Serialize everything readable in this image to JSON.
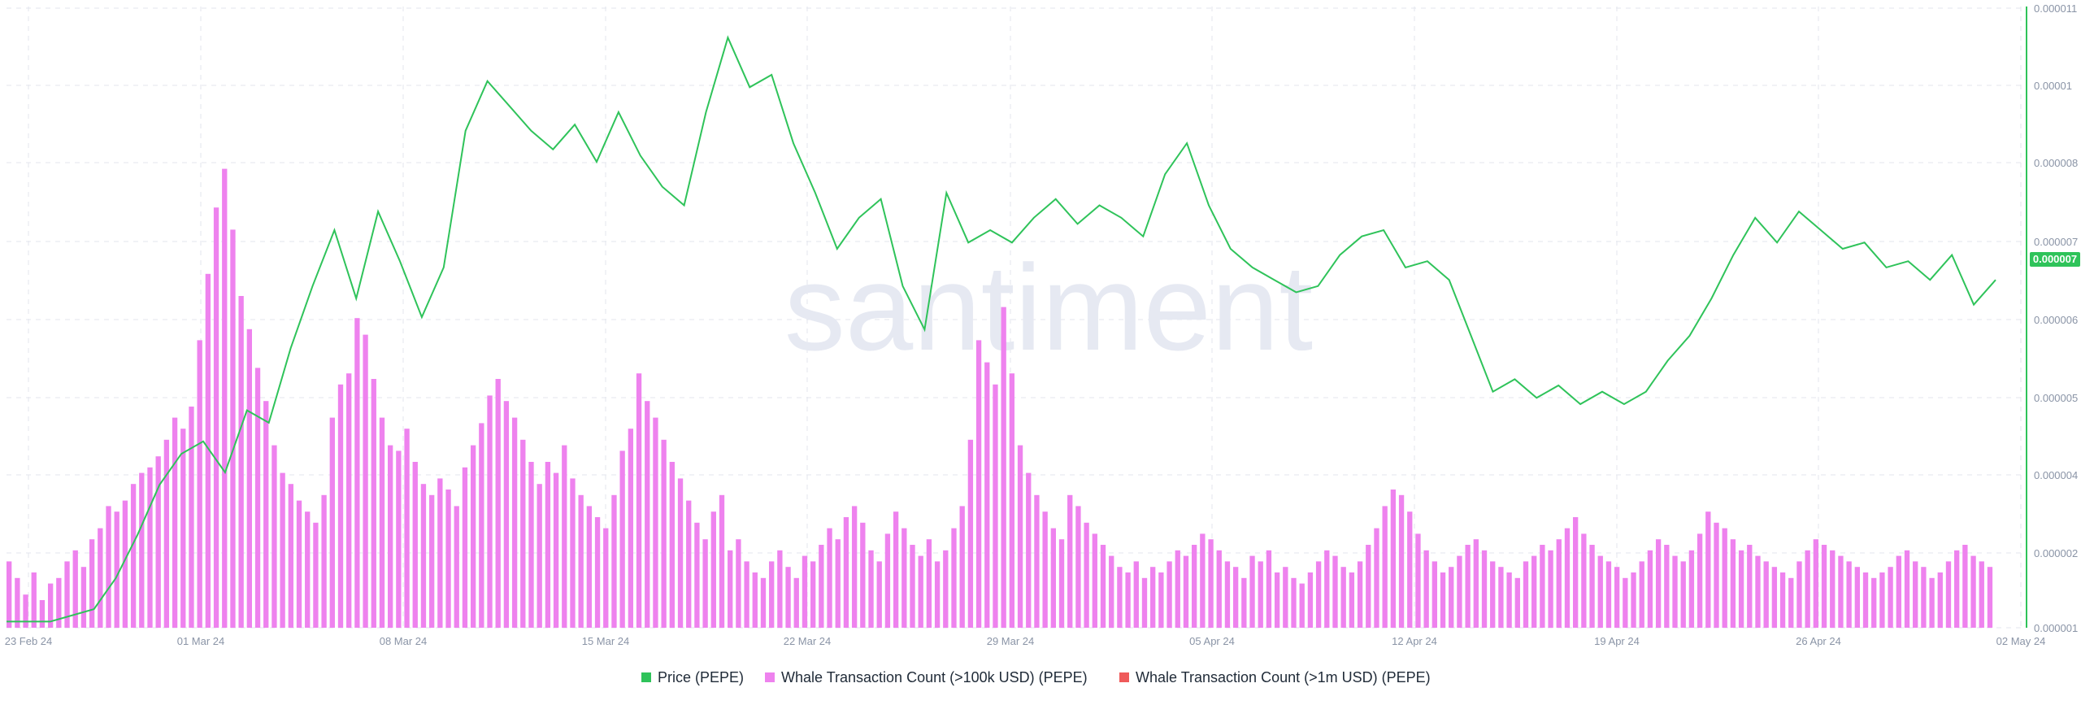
{
  "watermark": "santiment",
  "colors": {
    "price": "#2fc35a",
    "whale_100k": "#ee82ee",
    "whale_1m": "#ef5a5a",
    "grid": "#e3e6ee",
    "axis_text": "#8a94a6"
  },
  "chart_data": {
    "type": "bar",
    "x_start": "23 Feb 24",
    "x_end": "02 May 24",
    "x_ticks": [
      "23 Feb 24",
      "01 Mar 24",
      "08 Mar 24",
      "15 Mar 24",
      "22 Mar 24",
      "29 Mar 24",
      "05 Apr 24",
      "12 Apr 24",
      "19 Apr 24",
      "26 Apr 24",
      "02 May 24"
    ],
    "y_right_ticks": [
      "0.000011",
      "0.00001",
      "0.000008",
      "0.000007",
      "0.000006",
      "0.000005",
      "0.000004",
      "0.000002",
      "0.000001"
    ],
    "y_right_range": [
      1e-06,
      1.1e-05
    ],
    "current_price_label": "0.000007",
    "grid": true,
    "legend_placement": "bottom-center",
    "series": [
      {
        "name": "Price (PEPE)",
        "type": "line",
        "points": [
          [
            0,
            1.1e-06
          ],
          [
            2,
            1.1e-06
          ],
          [
            4,
            1.3e-06
          ],
          [
            5,
            1.8e-06
          ],
          [
            6,
            2.5e-06
          ],
          [
            7,
            3.3e-06
          ],
          [
            8,
            3.8e-06
          ],
          [
            9,
            4e-06
          ],
          [
            10,
            3.5e-06
          ],
          [
            11,
            4.5e-06
          ],
          [
            12,
            4.3e-06
          ],
          [
            13,
            5.5e-06
          ],
          [
            14,
            6.5e-06
          ],
          [
            15,
            7.4e-06
          ],
          [
            16,
            6.3e-06
          ],
          [
            17,
            7.7e-06
          ],
          [
            18,
            6.9e-06
          ],
          [
            19,
            6e-06
          ],
          [
            20,
            6.8e-06
          ],
          [
            21,
            9e-06
          ],
          [
            22,
            9.8e-06
          ],
          [
            23,
            9.4e-06
          ],
          [
            24,
            9e-06
          ],
          [
            25,
            8.7e-06
          ],
          [
            26,
            9.1e-06
          ],
          [
            27,
            8.5e-06
          ],
          [
            28,
            9.3e-06
          ],
          [
            29,
            8.6e-06
          ],
          [
            30,
            8.1e-06
          ],
          [
            31,
            7.8e-06
          ],
          [
            32,
            9.3e-06
          ],
          [
            33,
            1.05e-05
          ],
          [
            34,
            9.7e-06
          ],
          [
            35,
            9.9e-06
          ],
          [
            36,
            8.8e-06
          ],
          [
            37,
            8e-06
          ],
          [
            38,
            7.1e-06
          ],
          [
            39,
            7.6e-06
          ],
          [
            40,
            7.9e-06
          ],
          [
            41,
            6.5e-06
          ],
          [
            42,
            5.8e-06
          ],
          [
            43,
            8e-06
          ],
          [
            44,
            7.2e-06
          ],
          [
            45,
            7.4e-06
          ],
          [
            46,
            7.2e-06
          ],
          [
            47,
            7.6e-06
          ],
          [
            48,
            7.9e-06
          ],
          [
            49,
            7.5e-06
          ],
          [
            50,
            7.8e-06
          ],
          [
            51,
            7.6e-06
          ],
          [
            52,
            7.3e-06
          ],
          [
            53,
            8.3e-06
          ],
          [
            54,
            8.8e-06
          ],
          [
            55,
            7.8e-06
          ],
          [
            56,
            7.1e-06
          ],
          [
            57,
            6.8e-06
          ],
          [
            58,
            6.6e-06
          ],
          [
            59,
            6.4e-06
          ],
          [
            60,
            6.5e-06
          ],
          [
            61,
            7e-06
          ],
          [
            62,
            7.3e-06
          ],
          [
            63,
            7.4e-06
          ],
          [
            64,
            6.8e-06
          ],
          [
            65,
            6.9e-06
          ],
          [
            66,
            6.6e-06
          ],
          [
            67,
            5.7e-06
          ],
          [
            68,
            4.8e-06
          ],
          [
            69,
            5e-06
          ],
          [
            70,
            4.7e-06
          ],
          [
            71,
            4.9e-06
          ],
          [
            72,
            4.6e-06
          ],
          [
            73,
            4.8e-06
          ],
          [
            74,
            4.6e-06
          ],
          [
            75,
            4.8e-06
          ],
          [
            76,
            5.3e-06
          ],
          [
            77,
            5.7e-06
          ],
          [
            78,
            6.3e-06
          ],
          [
            79,
            7e-06
          ],
          [
            80,
            7.6e-06
          ],
          [
            81,
            7.2e-06
          ],
          [
            82,
            7.7e-06
          ],
          [
            83,
            7.4e-06
          ],
          [
            84,
            7.1e-06
          ],
          [
            85,
            7.2e-06
          ],
          [
            86,
            6.8e-06
          ],
          [
            87,
            6.9e-06
          ],
          [
            88,
            6.6e-06
          ],
          [
            89,
            7e-06
          ],
          [
            90,
            6.2e-06
          ],
          [
            91,
            6.6e-06
          ]
        ]
      },
      {
        "name": "Whale Transaction Count (>100k USD) (PEPE)",
        "type": "bar",
        "values": [
          12,
          9,
          6,
          10,
          5,
          8,
          9,
          12,
          14,
          11,
          16,
          18,
          22,
          21,
          23,
          26,
          28,
          29,
          31,
          34,
          38,
          36,
          40,
          52,
          64,
          76,
          83,
          72,
          60,
          54,
          47,
          41,
          33,
          28,
          26,
          23,
          21,
          19,
          24,
          38,
          44,
          46,
          56,
          53,
          45,
          38,
          33,
          32,
          36,
          30,
          26,
          24,
          27,
          25,
          22,
          29,
          33,
          37,
          42,
          45,
          41,
          38,
          34,
          30,
          26,
          30,
          28,
          33,
          27,
          24,
          22,
          20,
          18,
          24,
          32,
          36,
          46,
          41,
          38,
          34,
          30,
          27,
          23,
          19,
          16,
          21,
          24,
          14,
          16,
          12,
          10,
          9,
          12,
          14,
          11,
          9,
          13,
          12,
          15,
          18,
          16,
          20,
          22,
          19,
          14,
          12,
          17,
          21,
          18,
          15,
          13,
          16,
          12,
          14,
          18,
          22,
          34,
          52,
          48,
          44,
          58,
          46,
          33,
          28,
          24,
          21,
          18,
          16,
          24,
          22,
          19,
          17,
          15,
          13,
          11,
          10,
          12,
          9,
          11,
          10,
          12,
          14,
          13,
          15,
          17,
          16,
          14,
          12,
          11,
          9,
          13,
          12,
          14,
          10,
          11,
          9,
          8,
          10,
          12,
          14,
          13,
          11,
          10,
          12,
          15,
          18,
          22,
          25,
          24,
          21,
          17,
          14,
          12,
          10,
          11,
          13,
          15,
          16,
          14,
          12,
          11,
          10,
          9,
          12,
          13,
          15,
          14,
          16,
          18,
          20,
          17,
          15,
          13,
          12,
          11,
          9,
          10,
          12,
          14,
          16,
          15,
          13,
          12,
          14,
          17,
          21,
          19,
          18,
          16,
          14,
          15,
          13,
          12,
          11,
          10,
          9,
          12,
          14,
          16,
          15,
          14,
          13,
          12,
          11,
          10,
          9,
          10,
          11,
          13,
          14,
          12,
          11,
          9,
          10,
          12,
          14,
          15,
          13,
          12,
          11
        ]
      },
      {
        "name": "Whale Transaction Count (>1m USD) (PEPE)",
        "type": "bar",
        "values": []
      }
    ]
  },
  "legend": [
    {
      "label": "Price (PEPE)",
      "color": "#2fc35a"
    },
    {
      "label": "Whale Transaction Count (>100k USD) (PEPE)",
      "color": "#ee82ee"
    },
    {
      "label": "Whale Transaction Count (>1m USD) (PEPE)",
      "color": "#ef5a5a"
    }
  ]
}
